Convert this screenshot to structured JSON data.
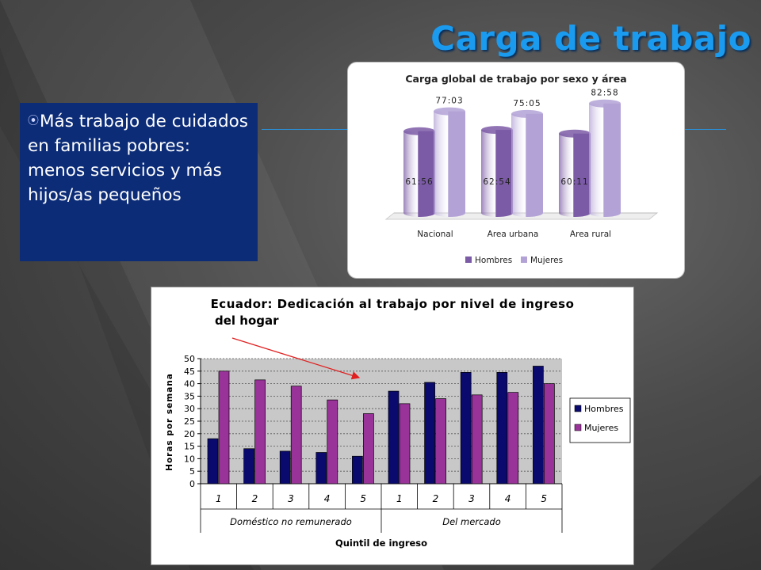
{
  "slide": {
    "title": "Carga de trabajo",
    "bullet_icon": "circle-arrow-bullet-icon",
    "bullet_text": "Más trabajo de cuidados en familias pobres: menos servicios y más hijos/as pequeños"
  },
  "chart_data": [
    {
      "type": "bar",
      "style": "3d-cylinder",
      "title": "Carga global de trabajo por sexo y área",
      "categories": [
        "Nacional",
        "Area urbana",
        "Area rural"
      ],
      "series": [
        {
          "name": "Hombres",
          "values": [
            61.93,
            62.9,
            60.18
          ],
          "labels": [
            "61:56",
            "62:54",
            "60:11"
          ],
          "color": "#7b5aa6"
        },
        {
          "name": "Mujeres",
          "values": [
            77.05,
            75.08,
            82.97
          ],
          "labels": [
            "77:03",
            "75:05",
            "82:58"
          ],
          "color": "#b3a2d6"
        }
      ],
      "ylim": [
        0,
        90
      ],
      "legend": "bottom",
      "grid": false
    },
    {
      "type": "bar",
      "title": "Ecuador: Dedicación al trabajo por nivel de ingreso del hogar",
      "xlabel": "Quintil de ingreso",
      "ylabel": "Horas por semana",
      "groups": [
        "Doméstico no remunerado",
        "Del mercado"
      ],
      "categories": [
        "1",
        "2",
        "3",
        "4",
        "5",
        "1",
        "2",
        "3",
        "4",
        "5"
      ],
      "series": [
        {
          "name": "Hombres",
          "values": [
            18,
            14,
            13,
            12.5,
            11,
            37,
            40.5,
            44.5,
            44.5,
            47
          ],
          "color": "#0a0a6e"
        },
        {
          "name": "Mujeres",
          "values": [
            45,
            41.5,
            39,
            33.5,
            28,
            32,
            34,
            35.5,
            36.5,
            40
          ],
          "color": "#993399"
        }
      ],
      "ylim": [
        0,
        50
      ],
      "yticks": [
        0,
        5,
        10,
        15,
        20,
        25,
        30,
        35,
        40,
        45,
        50
      ],
      "legend": "right",
      "grid": true,
      "annotation": "red-arrow"
    }
  ]
}
